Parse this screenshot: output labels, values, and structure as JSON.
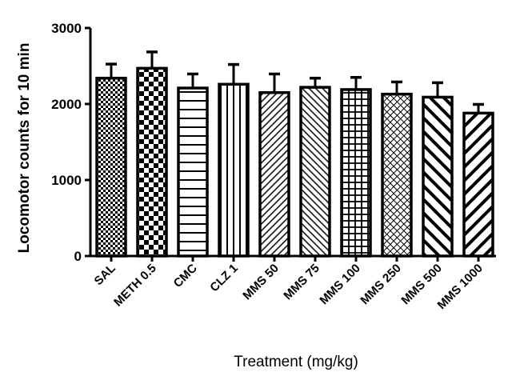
{
  "chart_data": {
    "type": "bar",
    "title": "",
    "xlabel": "Treatment (mg/kg)",
    "ylabel": "Locomotor counts for 10 min",
    "ylim": [
      0,
      3000
    ],
    "yticks": [
      "0",
      "1000",
      "2000",
      "3000"
    ],
    "grid": false,
    "categories": [
      "SAL",
      "METH 0.5",
      "CMC",
      "CLZ 1",
      "MMS 50",
      "MMS 75",
      "MMS 100",
      "MMS 250",
      "MMS 500",
      "MMS 1000"
    ],
    "values": [
      2340,
      2470,
      2210,
      2260,
      2150,
      2220,
      2190,
      2130,
      2090,
      1880
    ],
    "error_up": [
      185,
      215,
      185,
      260,
      245,
      120,
      160,
      160,
      190,
      115
    ],
    "patterns": [
      "fine-checker",
      "checker",
      "horizontal",
      "vertical",
      "diag-up-thin",
      "diag-down-thin",
      "grid",
      "crosshatch-diag",
      "diag-down-thick",
      "diag-up-thick"
    ],
    "colors": {
      "bar_fill": "#ffffff",
      "stroke": "#000000"
    }
  }
}
